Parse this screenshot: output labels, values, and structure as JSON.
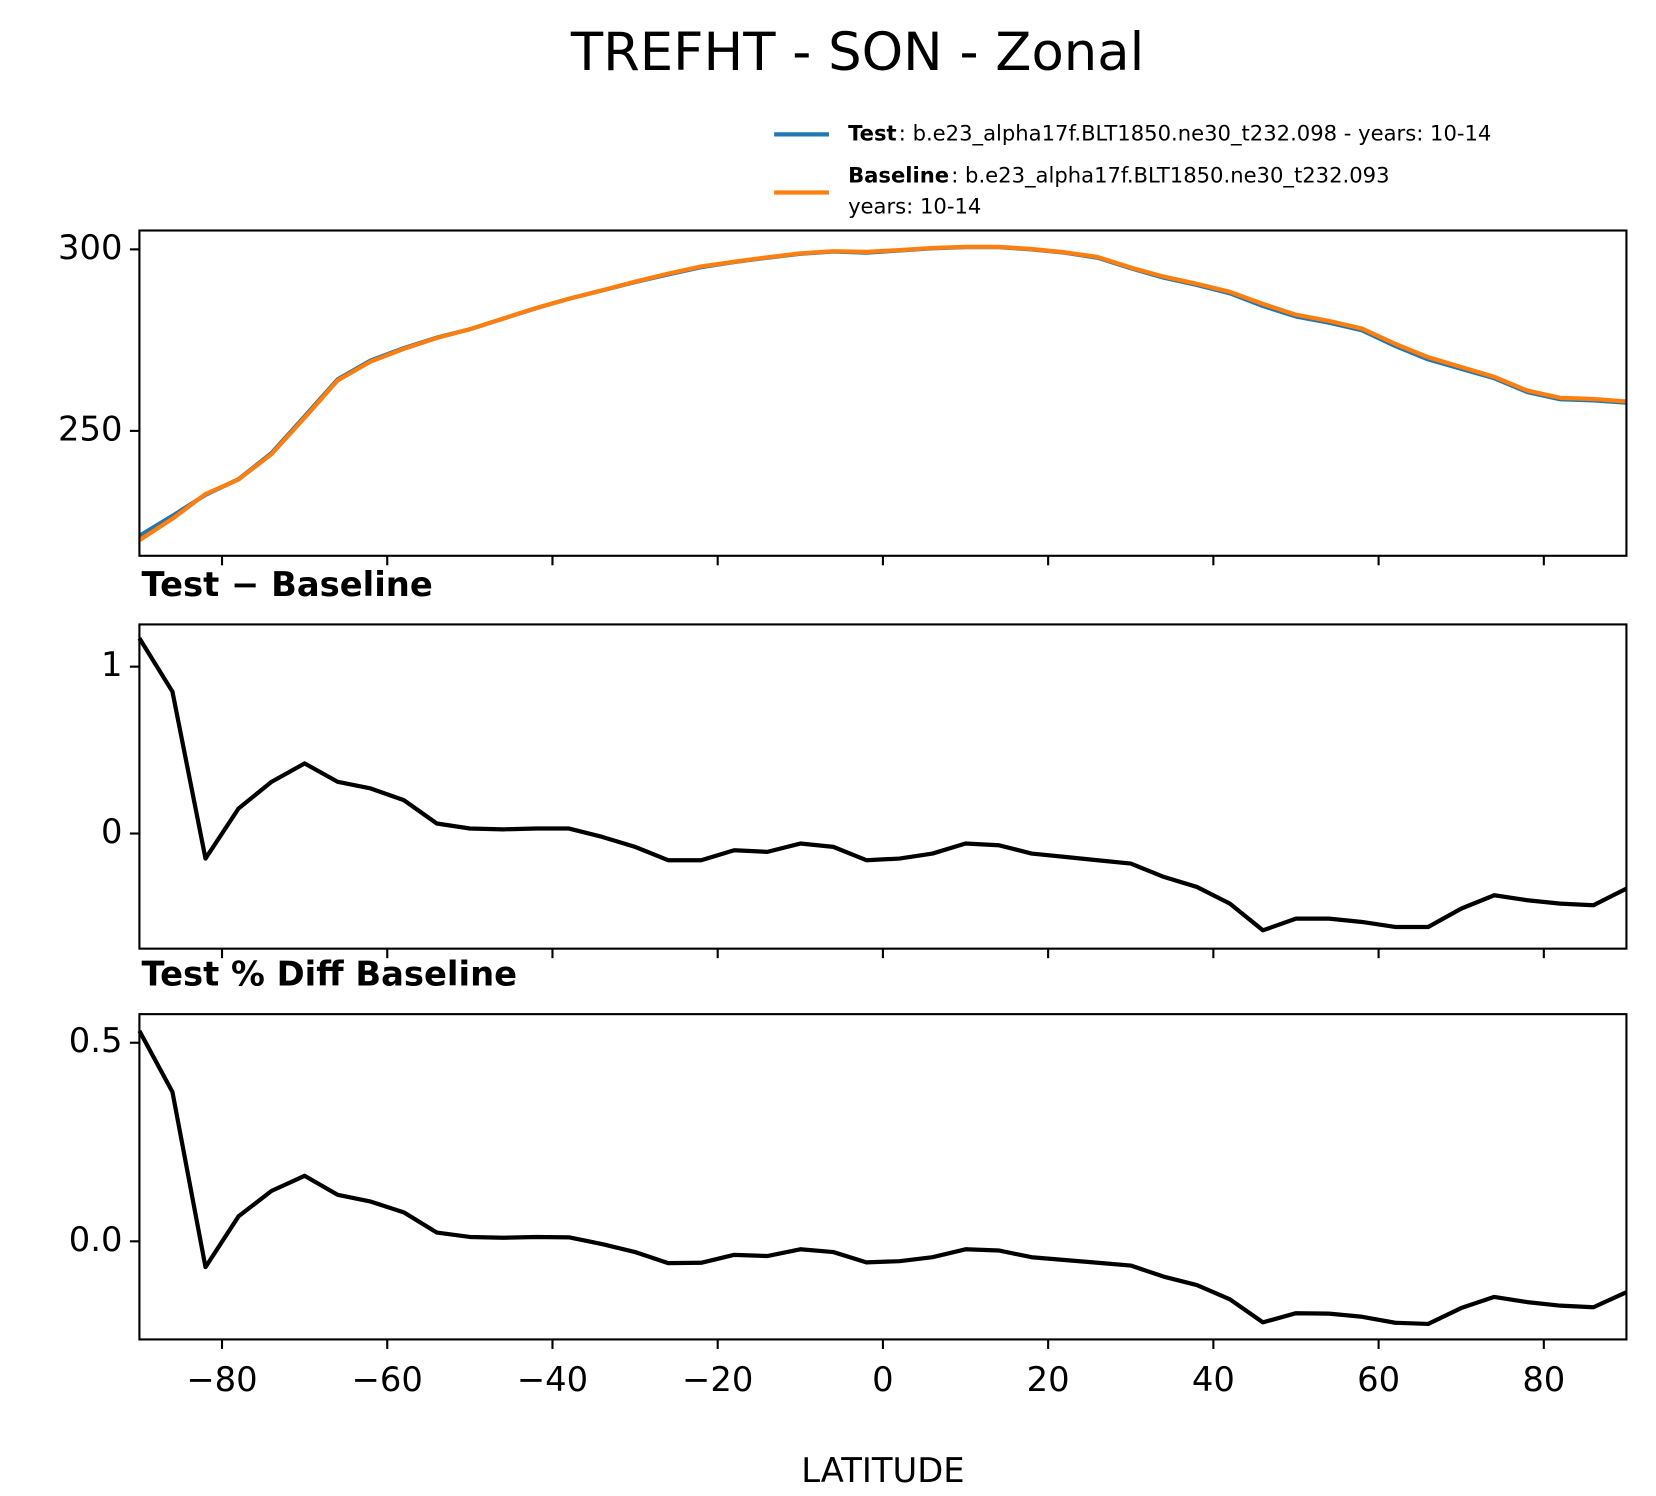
{
  "title": "TREFHT - SON - Zonal",
  "chart_data": [
    {
      "type": "line",
      "x": [
        -90,
        -86,
        -82,
        -78,
        -74,
        -70,
        -66,
        -62,
        -58,
        -54,
        -50,
        -46,
        -42,
        -38,
        -34,
        -30,
        -26,
        -22,
        -18,
        -14,
        -10,
        -6,
        -2,
        2,
        6,
        10,
        14,
        18,
        22,
        26,
        30,
        34,
        38,
        42,
        46,
        50,
        54,
        58,
        62,
        66,
        70,
        74,
        78,
        82,
        86,
        90
      ],
      "xlim": [
        -90,
        90
      ],
      "xticks": [
        -80,
        -60,
        -40,
        -20,
        0,
        20,
        40,
        60,
        80
      ],
      "ylim": [
        215.6,
        305.2
      ],
      "yticks": [
        250,
        300
      ],
      "legend": "above",
      "series": [
        {
          "name": "Test",
          "description": [
            ": b.e23_alpha17f.BLT1850.ne30_t232.098 - years: 10-14"
          ],
          "color": "#1f77b4",
          "values": [
            221.1,
            226.6,
            232.4,
            236.7,
            243.9,
            254.0,
            264.2,
            269.4,
            272.8,
            275.7,
            278.0,
            280.9,
            283.8,
            286.4,
            288.7,
            291.0,
            293.1,
            295.1,
            296.5,
            297.7,
            298.8,
            299.4,
            299.1,
            299.7,
            300.3,
            300.6,
            300.6,
            300.0,
            299.1,
            297.7,
            294.8,
            292.2,
            290.2,
            287.9,
            284.4,
            281.5,
            279.8,
            277.7,
            273.4,
            269.7,
            267.1,
            264.5,
            260.7,
            258.7,
            258.4,
            257.8
          ]
        },
        {
          "name": "Baseline",
          "description": [
            ": b.e23_alpha17f.BLT1850.ne30_t232.093",
            "years: 10-14"
          ],
          "color": "#ff7f0e",
          "values": [
            219.9,
            225.8,
            232.6,
            236.6,
            243.6,
            253.6,
            263.9,
            269.1,
            272.6,
            275.6,
            278.0,
            280.9,
            283.8,
            286.4,
            288.7,
            291.1,
            293.3,
            295.3,
            296.6,
            297.8,
            298.9,
            299.5,
            299.3,
            299.8,
            300.4,
            300.7,
            300.7,
            300.1,
            299.2,
            297.9,
            295.0,
            292.5,
            290.5,
            288.3,
            285.0,
            282.0,
            280.3,
            278.2,
            274.0,
            270.3,
            267.6,
            264.9,
            261.1,
            259.1,
            258.8,
            258.1
          ]
        }
      ]
    },
    {
      "type": "line",
      "title": "Test − Baseline",
      "x": [
        -90,
        -86,
        -82,
        -78,
        -74,
        -70,
        -66,
        -62,
        -58,
        -54,
        -50,
        -46,
        -42,
        -38,
        -34,
        -30,
        -26,
        -22,
        -18,
        -14,
        -10,
        -6,
        -2,
        2,
        6,
        10,
        14,
        18,
        22,
        26,
        30,
        34,
        38,
        42,
        46,
        50,
        54,
        58,
        62,
        66,
        70,
        74,
        78,
        82,
        86,
        90
      ],
      "xlim": [
        -90,
        90
      ],
      "xticks": [
        -80,
        -60,
        -40,
        -20,
        0,
        20,
        40,
        60,
        80
      ],
      "ylim": [
        -0.69,
        1.253
      ],
      "yticks": [
        0,
        1
      ],
      "series": [
        {
          "color": "#000000",
          "values": [
            1.17,
            0.85,
            -0.15,
            0.15,
            0.31,
            0.42,
            0.31,
            0.27,
            0.2,
            0.06,
            0.03,
            0.025,
            0.03,
            0.03,
            -0.02,
            -0.08,
            -0.16,
            -0.16,
            -0.1,
            -0.11,
            -0.06,
            -0.08,
            -0.16,
            -0.15,
            -0.12,
            -0.06,
            -0.07,
            -0.12,
            -0.14,
            -0.16,
            -0.18,
            -0.26,
            -0.32,
            -0.42,
            -0.58,
            -0.51,
            -0.51,
            -0.53,
            -0.56,
            -0.56,
            -0.45,
            -0.37,
            -0.4,
            -0.42,
            -0.43,
            -0.33
          ]
        }
      ]
    },
    {
      "type": "line",
      "title": "Test % Diff Baseline",
      "xlabel": "LATITUDE",
      "x": [
        -90,
        -86,
        -82,
        -78,
        -74,
        -70,
        -66,
        -62,
        -58,
        -54,
        -50,
        -46,
        -42,
        -38,
        -34,
        -30,
        -26,
        -22,
        -18,
        -14,
        -10,
        -6,
        -2,
        2,
        6,
        10,
        14,
        18,
        22,
        26,
        30,
        34,
        38,
        42,
        46,
        50,
        54,
        58,
        62,
        66,
        70,
        74,
        78,
        82,
        86,
        90
      ],
      "xlim": [
        -90,
        90
      ],
      "xticks": [
        {
          "value": -80,
          "label": "−80"
        },
        {
          "value": -60,
          "label": "−60"
        },
        {
          "value": -40,
          "label": "−40"
        },
        {
          "value": -20,
          "label": "−20"
        },
        0,
        20,
        40,
        60,
        80
      ],
      "ylim": [
        -0.247,
        0.572
      ],
      "yticks": [
        {
          "value": 0,
          "label": "0.0"
        },
        0.5
      ],
      "series": [
        {
          "color": "#000000",
          "values": [
            0.53,
            0.376,
            -0.065,
            0.063,
            0.127,
            0.165,
            0.117,
            0.1,
            0.073,
            0.022,
            0.011,
            0.009,
            0.011,
            0.01,
            -0.007,
            -0.027,
            -0.055,
            -0.054,
            -0.034,
            -0.037,
            -0.02,
            -0.027,
            -0.053,
            -0.05,
            -0.04,
            -0.02,
            -0.023,
            -0.04,
            -0.047,
            -0.054,
            -0.061,
            -0.089,
            -0.11,
            -0.146,
            -0.204,
            -0.181,
            -0.182,
            -0.19,
            -0.205,
            -0.208,
            -0.168,
            -0.14,
            -0.153,
            -0.162,
            -0.166,
            -0.128
          ]
        }
      ]
    }
  ]
}
